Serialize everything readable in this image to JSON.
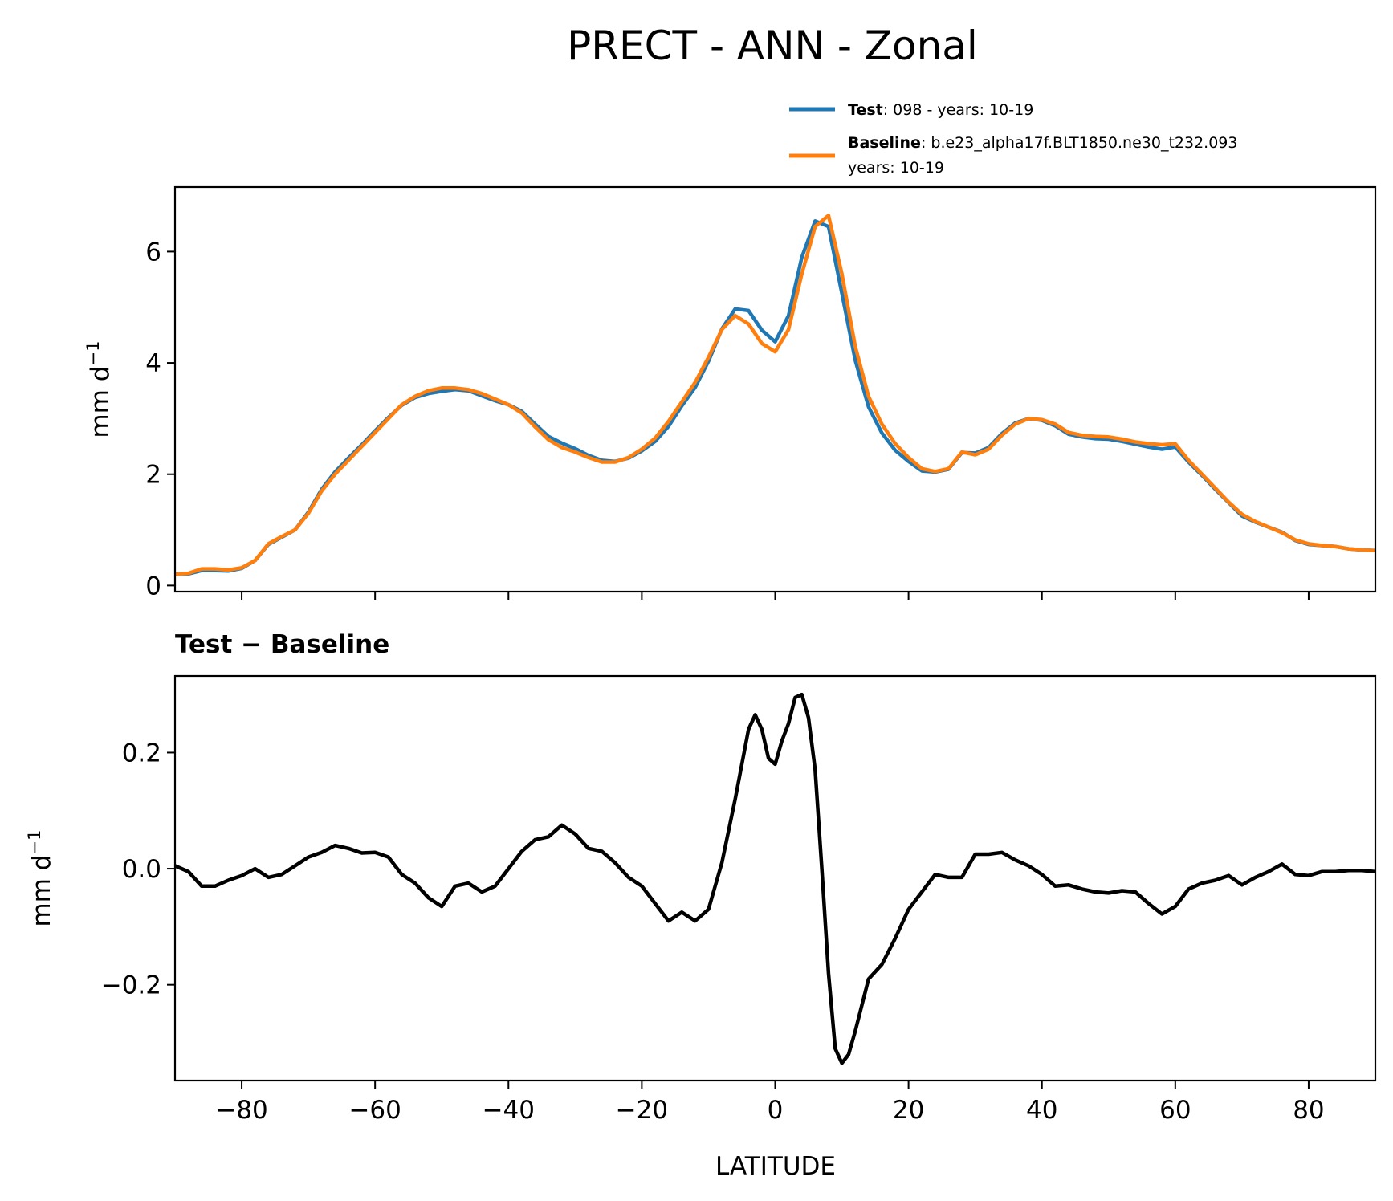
{
  "chart_data": [
    {
      "type": "line",
      "title": "PRECT - ANN - Zonal",
      "xlabel": "",
      "ylabel": "mm d⁻¹",
      "xlim": [
        -90,
        90
      ],
      "ylim": [
        -0.11,
        7.16
      ],
      "xticks": [
        -80,
        -60,
        -40,
        -20,
        0,
        20,
        40,
        60,
        80
      ],
      "yticks": [
        0,
        2,
        4,
        6
      ],
      "ytick_labels": [
        "0",
        "2",
        "4",
        "6"
      ],
      "grid": false,
      "legend_position": "top-right, above axes",
      "x": [
        -90,
        -88,
        -86,
        -84,
        -82,
        -80,
        -78,
        -76,
        -74,
        -72,
        -70,
        -68,
        -66,
        -64,
        -62,
        -60,
        -58,
        -56,
        -54,
        -52,
        -50,
        -48,
        -46,
        -44,
        -42,
        -40,
        -38,
        -36,
        -34,
        -32,
        -30,
        -28,
        -26,
        -24,
        -22,
        -20,
        -18,
        -16,
        -14,
        -12,
        -10,
        -8,
        -6,
        -4,
        -2,
        0,
        2,
        4,
        6,
        8,
        10,
        12,
        14,
        16,
        18,
        20,
        22,
        24,
        26,
        28,
        30,
        32,
        34,
        36,
        38,
        40,
        42,
        44,
        46,
        48,
        50,
        52,
        54,
        56,
        58,
        60,
        62,
        64,
        66,
        68,
        70,
        72,
        74,
        76,
        78,
        80,
        82,
        84,
        86,
        88,
        90
      ],
      "series": [
        {
          "name": "Test",
          "label_bold": "Test",
          "label_rest": ": 098 - years: 10-19",
          "color": "#1f77b4",
          "values": [
            0.2,
            0.21,
            0.27,
            0.27,
            0.26,
            0.31,
            0.45,
            0.74,
            0.87,
            1.0,
            1.32,
            1.73,
            2.04,
            2.29,
            2.53,
            2.78,
            3.02,
            3.24,
            3.38,
            3.45,
            3.49,
            3.52,
            3.5,
            3.41,
            3.32,
            3.25,
            3.13,
            2.9,
            2.68,
            2.56,
            2.46,
            2.34,
            2.25,
            2.23,
            2.29,
            2.42,
            2.59,
            2.86,
            3.23,
            3.56,
            4.03,
            4.61,
            4.97,
            4.94,
            4.59,
            4.38,
            4.85,
            5.9,
            6.55,
            6.45,
            5.25,
            4.05,
            3.21,
            2.74,
            2.43,
            2.23,
            2.06,
            2.04,
            2.09,
            2.39,
            2.38,
            2.48,
            2.73,
            2.92,
            3.0,
            2.97,
            2.87,
            2.72,
            2.67,
            2.64,
            2.63,
            2.59,
            2.54,
            2.49,
            2.45,
            2.49,
            2.22,
            1.98,
            1.73,
            1.49,
            1.25,
            1.14,
            1.05,
            0.96,
            0.81,
            0.74,
            0.72,
            0.7,
            0.66,
            0.64,
            0.63
          ]
        },
        {
          "name": "Baseline",
          "label_bold": "Baseline",
          "label_rest": ": b.e23_alpha17f.BLT1850.ne30_t232.093",
          "label_line2": "years: 10-19",
          "color": "#ff7f0e",
          "values": [
            0.2,
            0.22,
            0.3,
            0.3,
            0.28,
            0.32,
            0.45,
            0.75,
            0.88,
            1.0,
            1.3,
            1.7,
            2.0,
            2.25,
            2.5,
            2.75,
            3.0,
            3.25,
            3.4,
            3.5,
            3.55,
            3.55,
            3.52,
            3.45,
            3.35,
            3.25,
            3.1,
            2.85,
            2.62,
            2.48,
            2.4,
            2.3,
            2.22,
            2.22,
            2.3,
            2.45,
            2.65,
            2.95,
            3.3,
            3.65,
            4.1,
            4.6,
            4.85,
            4.7,
            4.35,
            4.2,
            4.6,
            5.6,
            6.45,
            6.65,
            5.6,
            4.3,
            3.4,
            2.9,
            2.55,
            2.3,
            2.1,
            2.05,
            2.1,
            2.4,
            2.35,
            2.45,
            2.7,
            2.9,
            3.0,
            2.98,
            2.9,
            2.75,
            2.7,
            2.68,
            2.67,
            2.63,
            2.58,
            2.55,
            2.53,
            2.55,
            2.25,
            2.0,
            1.75,
            1.5,
            1.28,
            1.15,
            1.05,
            0.95,
            0.82,
            0.75,
            0.72,
            0.7,
            0.66,
            0.64,
            0.63
          ]
        }
      ]
    },
    {
      "type": "line",
      "title": "Test − Baseline",
      "xlabel": "LATITUDE",
      "ylabel": "mm d⁻¹",
      "xlim": [
        -90,
        90
      ],
      "ylim": [
        -0.365,
        0.332
      ],
      "xticks": [
        -80,
        -60,
        -40,
        -20,
        0,
        20,
        40,
        60,
        80
      ],
      "xtick_labels": [
        "−80",
        "−60",
        "−40",
        "−20",
        "0",
        "20",
        "40",
        "60",
        "80"
      ],
      "yticks": [
        -0.2,
        0.0,
        0.2
      ],
      "ytick_labels": [
        "−0.2",
        "0.0",
        "0.2"
      ],
      "grid": false,
      "series": [
        {
          "name": "Test - Baseline",
          "color": "#000000",
          "x": [
            -90,
            -88,
            -86,
            -84,
            -82,
            -80,
            -78,
            -76,
            -74,
            -72,
            -70,
            -68,
            -66,
            -64,
            -62,
            -60,
            -58,
            -56,
            -54,
            -52,
            -50,
            -48,
            -46,
            -44,
            -42,
            -40,
            -38,
            -36,
            -34,
            -32,
            -30,
            -28,
            -26,
            -24,
            -22,
            -20,
            -18,
            -16,
            -14,
            -12,
            -10,
            -8,
            -6,
            -4,
            -3,
            -2,
            -1,
            0,
            1,
            2,
            3,
            4,
            5,
            6,
            7,
            8,
            9,
            10,
            11,
            12,
            14,
            16,
            18,
            20,
            22,
            24,
            26,
            28,
            30,
            32,
            34,
            36,
            38,
            40,
            42,
            44,
            46,
            48,
            50,
            52,
            54,
            56,
            58,
            60,
            62,
            64,
            66,
            68,
            70,
            72,
            74,
            76,
            78,
            80,
            82,
            84,
            86,
            88,
            90
          ],
          "values": [
            0.005,
            -0.005,
            -0.03,
            -0.03,
            -0.02,
            -0.012,
            0.0,
            -0.015,
            -0.01,
            0.005,
            0.02,
            0.028,
            0.04,
            0.035,
            0.027,
            0.028,
            0.02,
            -0.01,
            -0.025,
            -0.05,
            -0.065,
            -0.03,
            -0.025,
            -0.04,
            -0.03,
            0.0,
            0.03,
            0.05,
            0.055,
            0.075,
            0.06,
            0.035,
            0.03,
            0.01,
            -0.015,
            -0.03,
            -0.06,
            -0.09,
            -0.075,
            -0.09,
            -0.07,
            0.01,
            0.12,
            0.24,
            0.265,
            0.24,
            0.19,
            0.18,
            0.22,
            0.25,
            0.295,
            0.3,
            0.26,
            0.17,
            0.0,
            -0.18,
            -0.31,
            -0.335,
            -0.32,
            -0.28,
            -0.19,
            -0.165,
            -0.12,
            -0.07,
            -0.04,
            -0.01,
            -0.015,
            -0.015,
            0.025,
            0.025,
            0.028,
            0.015,
            0.005,
            -0.01,
            -0.03,
            -0.028,
            -0.035,
            -0.04,
            -0.042,
            -0.038,
            -0.04,
            -0.06,
            -0.078,
            -0.065,
            -0.035,
            -0.025,
            -0.02,
            -0.012,
            -0.028,
            -0.015,
            -0.005,
            0.008,
            -0.01,
            -0.012,
            -0.005,
            -0.005,
            -0.003,
            -0.003,
            -0.005
          ]
        }
      ]
    }
  ]
}
